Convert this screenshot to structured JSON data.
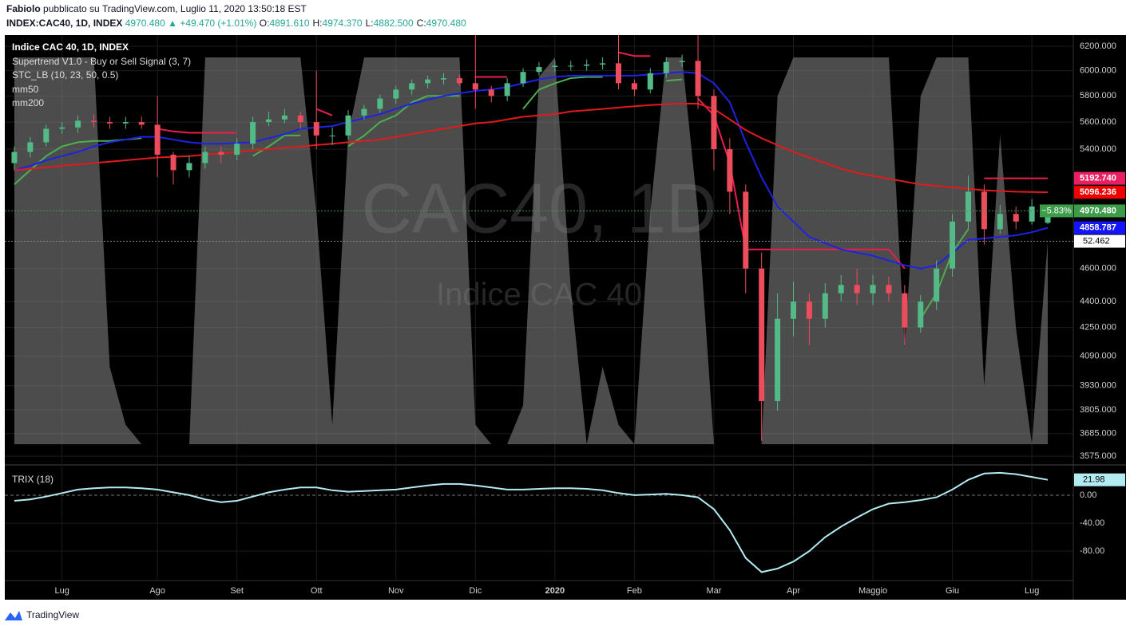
{
  "header": {
    "author": "Fabiolo",
    "published": "pubblicato su TradingView.com, Luglio 11, 2020 13:50:18 EST",
    "symbol": "INDEX:CAC40, 1D, INDEX",
    "last": "4970.480",
    "arrow": "▲",
    "change": "+49.470 (+1.01%)",
    "ohlc": [
      {
        "k": "O:",
        "v": "4891.610"
      },
      {
        "k": "H:",
        "v": "4974.370"
      },
      {
        "k": "L:",
        "v": "4882.500"
      },
      {
        "k": "C:",
        "v": "4970.480"
      }
    ]
  },
  "footer": {
    "brand": "TradingView"
  },
  "chart_data": [
    {
      "type": "candlestick",
      "title": "Indice CAC 40, 1D, INDEX",
      "watermark": [
        "CAC40, 1D",
        "Indice CAC 40"
      ],
      "log": true,
      "grid": true,
      "up_color": "#53b987",
      "down_color": "#eb4d5c",
      "categories": [
        null,
        null,
        null,
        "Lug",
        null,
        null,
        null,
        null,
        null,
        "Ago",
        null,
        null,
        null,
        null,
        "Set",
        null,
        null,
        null,
        null,
        "Ott",
        null,
        null,
        null,
        null,
        "Nov",
        null,
        null,
        null,
        null,
        "Dic",
        null,
        null,
        null,
        null,
        "2020",
        null,
        null,
        null,
        null,
        "Feb",
        null,
        null,
        null,
        null,
        "Mar",
        null,
        null,
        null,
        null,
        "Apr",
        null,
        null,
        null,
        null,
        "Maggio",
        null,
        null,
        null,
        null,
        "Giu",
        null,
        null,
        null,
        null,
        "Lug",
        null
      ],
      "open": [
        5300,
        5380,
        5450,
        5550,
        5560,
        5610,
        5600,
        5590,
        5600,
        5580,
        5360,
        5250,
        5300,
        5380,
        5360,
        5440,
        5600,
        5620,
        5650,
        5600,
        5500,
        5500,
        5650,
        5700,
        5780,
        5850,
        5900,
        5930,
        5940,
        5900,
        5850,
        5800,
        5900,
        5990,
        6030,
        6040,
        6040,
        6050,
        6060,
        5900,
        5850,
        5980,
        6070,
        6080,
        5800,
        5400,
        5100,
        4600,
        3850,
        4300,
        4400,
        4300,
        4450,
        4500,
        4450,
        4500,
        4450,
        4250,
        4400,
        4600,
        4900,
        5100,
        4850,
        4950,
        4900,
        4891.61
      ],
      "high": [
        5420,
        5490,
        5580,
        5600,
        5650,
        5660,
        5640,
        5640,
        5640,
        5800,
        5380,
        5350,
        5420,
        5420,
        5480,
        5640,
        5680,
        5700,
        5680,
        6000,
        5560,
        5690,
        5730,
        5810,
        5880,
        5930,
        5960,
        5980,
        5970,
        6294,
        5880,
        5940,
        6020,
        6070,
        6080,
        6080,
        6090,
        6110,
        6294,
        5930,
        6020,
        6110,
        6130,
        6294,
        5850,
        5480,
        5150,
        4700,
        4450,
        4520,
        4450,
        4510,
        4560,
        4600,
        4560,
        4550,
        4500,
        4440,
        4650,
        4950,
        5210,
        5150,
        5010,
        5000,
        5050,
        4974.37
      ],
      "low": [
        5250,
        5340,
        5420,
        5510,
        5520,
        5560,
        5550,
        5550,
        5550,
        5200,
        5150,
        5200,
        5260,
        5300,
        5320,
        5400,
        5570,
        5590,
        5550,
        5400,
        5430,
        5470,
        5620,
        5670,
        5740,
        5810,
        5860,
        5890,
        5880,
        5700,
        5750,
        5760,
        5870,
        5960,
        5990,
        6000,
        6000,
        6010,
        5850,
        5800,
        5820,
        5940,
        6030,
        5700,
        5250,
        4950,
        4450,
        3650,
        3800,
        4200,
        4150,
        4250,
        4400,
        4380,
        4380,
        4400,
        4150,
        4220,
        4350,
        4550,
        4850,
        4750,
        4820,
        4850,
        4880,
        4882.5
      ],
      "close": [
        5380,
        5450,
        5550,
        5560,
        5610,
        5600,
        5590,
        5600,
        5580,
        5360,
        5250,
        5300,
        5380,
        5360,
        5440,
        5600,
        5620,
        5650,
        5600,
        5500,
        5500,
        5650,
        5700,
        5780,
        5850,
        5900,
        5930,
        5940,
        5900,
        5850,
        5800,
        5900,
        5990,
        6030,
        6040,
        6040,
        6050,
        6060,
        5900,
        5850,
        5980,
        6070,
        6080,
        5800,
        5400,
        5100,
        4600,
        3850,
        4300,
        4400,
        4300,
        4450,
        4500,
        4450,
        4500,
        4450,
        4250,
        4400,
        4600,
        4900,
        5100,
        4850,
        4950,
        4900,
        5000,
        4970.48
      ],
      "ylim": [
        3545,
        6294
      ],
      "yticks": [
        {
          "value": 6200,
          "label": "6200.000"
        },
        {
          "value": 6000,
          "label": "6000.000"
        },
        {
          "value": 5800,
          "label": "5800.000"
        },
        {
          "value": 5600,
          "label": "5600.000"
        },
        {
          "value": 5400,
          "label": "5400.000"
        },
        {
          "value": 4600,
          "label": "4600.000"
        },
        {
          "value": 4400,
          "label": "4400.000"
        },
        {
          "value": 4250,
          "label": "4250.000"
        },
        {
          "value": 4090,
          "label": "4090.000"
        },
        {
          "value": 3930,
          "label": "3930.000"
        },
        {
          "value": 3805,
          "label": "3805.000"
        },
        {
          "value": 3685,
          "label": "3685.000"
        },
        {
          "value": 3575,
          "label": "3575.000"
        }
      ],
      "series": [
        {
          "name": "mm50",
          "color": "#1e22e6",
          "values": [
            5250,
            5280,
            5320,
            5350,
            5380,
            5420,
            5450,
            5470,
            5490,
            5490,
            5470,
            5450,
            5440,
            5440,
            5445,
            5450,
            5480,
            5510,
            5550,
            5560,
            5570,
            5600,
            5630,
            5660,
            5700,
            5740,
            5770,
            5800,
            5820,
            5840,
            5850,
            5870,
            5900,
            5930,
            5950,
            5960,
            5960,
            5960,
            5960,
            5960,
            5970,
            5980,
            5990,
            5980,
            5900,
            5750,
            5450,
            5200,
            5000,
            4900,
            4800,
            4760,
            4720,
            4700,
            4680,
            4650,
            4620,
            4600,
            4620,
            4700,
            4780,
            4790,
            4800,
            4810,
            4830,
            4858.787
          ]
        },
        {
          "name": "mm200",
          "color": "#e01b1b",
          "values": [
            5250,
            5260,
            5270,
            5280,
            5290,
            5300,
            5310,
            5320,
            5330,
            5340,
            5345,
            5350,
            5360,
            5370,
            5380,
            5390,
            5400,
            5410,
            5420,
            5430,
            5440,
            5450,
            5460,
            5470,
            5490,
            5510,
            5530,
            5550,
            5570,
            5590,
            5600,
            5620,
            5640,
            5650,
            5660,
            5680,
            5690,
            5700,
            5710,
            5720,
            5730,
            5735,
            5740,
            5740,
            5700,
            5620,
            5540,
            5480,
            5430,
            5380,
            5340,
            5300,
            5260,
            5230,
            5210,
            5190,
            5170,
            5150,
            5140,
            5130,
            5120,
            5110,
            5105,
            5100,
            5098,
            5096.236
          ]
        }
      ],
      "supertrend": {
        "name": "Supertrend V1.0 - Buy or Sell Signal (3, 7)",
        "up": {
          "color": "#4caf50",
          "values": [
            5150,
            5250,
            5350,
            5420,
            5450,
            5460,
            5460,
            5470,
            5480,
            null,
            null,
            null,
            null,
            null,
            null,
            5350,
            5420,
            5500,
            5500,
            null,
            null,
            5420,
            5500,
            5600,
            5650,
            5750,
            5800,
            5800,
            5800,
            null,
            null,
            null,
            5700,
            5850,
            5900,
            5940,
            5950,
            5950,
            null,
            null,
            null,
            5920,
            5930,
            null,
            null,
            null,
            null,
            null,
            null,
            null,
            null,
            null,
            null,
            null,
            null,
            null,
            null,
            4300,
            4450,
            4700,
            4850,
            null,
            null,
            null,
            null,
            null
          ]
        },
        "down": {
          "color": "#e91e4c",
          "values": [
            null,
            null,
            null,
            null,
            null,
            null,
            null,
            null,
            null,
            5550,
            5530,
            5520,
            5520,
            5520,
            5520,
            null,
            null,
            null,
            null,
            5700,
            5650,
            null,
            null,
            null,
            null,
            null,
            null,
            null,
            null,
            5950,
            5950,
            5950,
            null,
            null,
            null,
            null,
            null,
            null,
            6150,
            6120,
            6120,
            null,
            null,
            5780,
            5650,
            5300,
            4720,
            4720,
            4720,
            4720,
            4720,
            4720,
            4720,
            4720,
            4720,
            4720,
            4600,
            null,
            null,
            null,
            null,
            5192.74,
            5192.74,
            5192.74,
            5192.74,
            5192.74
          ]
        }
      },
      "stc": {
        "name": "STC_LB (10, 23, 50, 0.5)",
        "color": "#8a8a8a",
        "ylim": [
          0,
          100
        ],
        "values": [
          100,
          100,
          100,
          100,
          100,
          100,
          20,
          5,
          0,
          0,
          0,
          0,
          100,
          100,
          100,
          100,
          100,
          100,
          100,
          60,
          5,
          80,
          100,
          100,
          100,
          100,
          100,
          100,
          100,
          5,
          0,
          0,
          10,
          95,
          100,
          40,
          0,
          20,
          5,
          0,
          60,
          100,
          100,
          60,
          0,
          0,
          0,
          0,
          90,
          100,
          100,
          100,
          100,
          100,
          100,
          100,
          25,
          90,
          100,
          100,
          100,
          15,
          80,
          30,
          0,
          52.462
        ]
      },
      "price_labels": [
        {
          "value": 5192.74,
          "label": "5192.740",
          "color": "#e91e63"
        },
        {
          "value": 5096.236,
          "label": "5096.236",
          "color": "#f00000"
        },
        {
          "value": 4970.48,
          "label": "4970.480",
          "color": "#3d9c4a"
        },
        {
          "value": 4858.787,
          "label": "4858.787",
          "color": "#1414ff"
        }
      ],
      "change_label": "−5.83%"
    },
    {
      "type": "line",
      "title": "TRIX (18)",
      "color": "#b2ebf2",
      "ylim": [
        -121,
        41
      ],
      "yticks": [
        {
          "value": 0,
          "label": "0.00"
        },
        {
          "value": -40,
          "label": "-40.00"
        },
        {
          "value": -80,
          "label": "-80.00"
        }
      ],
      "last_label": {
        "value": 21.98,
        "label": "21.98"
      },
      "values": [
        -8,
        -6,
        -2,
        3,
        8,
        10,
        11,
        11,
        10,
        8,
        4,
        0,
        -6,
        -10,
        -8,
        -2,
        4,
        8,
        11,
        11,
        7,
        5,
        6,
        7,
        8,
        11,
        14,
        16,
        16,
        14,
        11,
        8,
        8,
        9,
        10,
        10,
        9,
        7,
        3,
        0,
        1,
        2,
        0,
        -3,
        -20,
        -50,
        -90,
        -110,
        -105,
        -95,
        -80,
        -60,
        -45,
        -32,
        -20,
        -12,
        -10,
        -7,
        -3,
        8,
        22,
        31,
        32,
        30,
        26,
        21.98
      ]
    }
  ]
}
